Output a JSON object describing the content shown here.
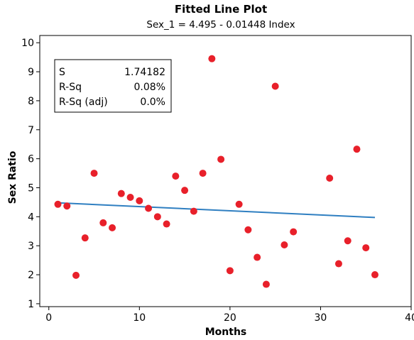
{
  "chart_data": {
    "type": "scatter",
    "title": "Fitted Line Plot",
    "subtitle": "Sex_1 = 4.495 - 0.01448 Index",
    "xlabel": "Months",
    "ylabel": "Sex Ratio",
    "xlim": [
      -1,
      40
    ],
    "ylim": [
      0.9,
      10.25
    ],
    "xticks": [
      0,
      10,
      20,
      30,
      40
    ],
    "yticks": [
      1,
      2,
      3,
      4,
      5,
      6,
      7,
      8,
      9,
      10
    ],
    "grid": false,
    "point_color": "#e8202a",
    "line_color": "#2f7fc1",
    "points": [
      {
        "x": 1,
        "y": 4.43
      },
      {
        "x": 2,
        "y": 4.37
      },
      {
        "x": 3,
        "y": 1.98
      },
      {
        "x": 4,
        "y": 3.27
      },
      {
        "x": 5,
        "y": 5.5
      },
      {
        "x": 6,
        "y": 3.79
      },
      {
        "x": 7,
        "y": 3.62
      },
      {
        "x": 8,
        "y": 4.8
      },
      {
        "x": 9,
        "y": 4.67
      },
      {
        "x": 10,
        "y": 4.55
      },
      {
        "x": 11,
        "y": 4.29
      },
      {
        "x": 12,
        "y": 4.0
      },
      {
        "x": 13,
        "y": 3.75
      },
      {
        "x": 14,
        "y": 5.4
      },
      {
        "x": 15,
        "y": 4.91
      },
      {
        "x": 16,
        "y": 4.19
      },
      {
        "x": 17,
        "y": 5.5
      },
      {
        "x": 18,
        "y": 9.45
      },
      {
        "x": 19,
        "y": 5.98
      },
      {
        "x": 20,
        "y": 2.14
      },
      {
        "x": 21,
        "y": 4.43
      },
      {
        "x": 22,
        "y": 3.55
      },
      {
        "x": 23,
        "y": 2.6
      },
      {
        "x": 24,
        "y": 1.67
      },
      {
        "x": 25,
        "y": 8.5
      },
      {
        "x": 26,
        "y": 3.03
      },
      {
        "x": 27,
        "y": 3.48
      },
      {
        "x": 31,
        "y": 5.33
      },
      {
        "x": 32,
        "y": 2.38
      },
      {
        "x": 33,
        "y": 3.17
      },
      {
        "x": 34,
        "y": 6.33
      },
      {
        "x": 35,
        "y": 2.93
      },
      {
        "x": 36,
        "y": 2.0
      }
    ],
    "fit_line": {
      "intercept": 4.495,
      "slope": -0.01448,
      "x_start": 1,
      "x_end": 36
    },
    "stats": [
      {
        "label": "S",
        "value": "1.74182"
      },
      {
        "label": "R-Sq",
        "value": "0.08%"
      },
      {
        "label": "R-Sq (adj)",
        "value": "0.0%"
      }
    ]
  }
}
